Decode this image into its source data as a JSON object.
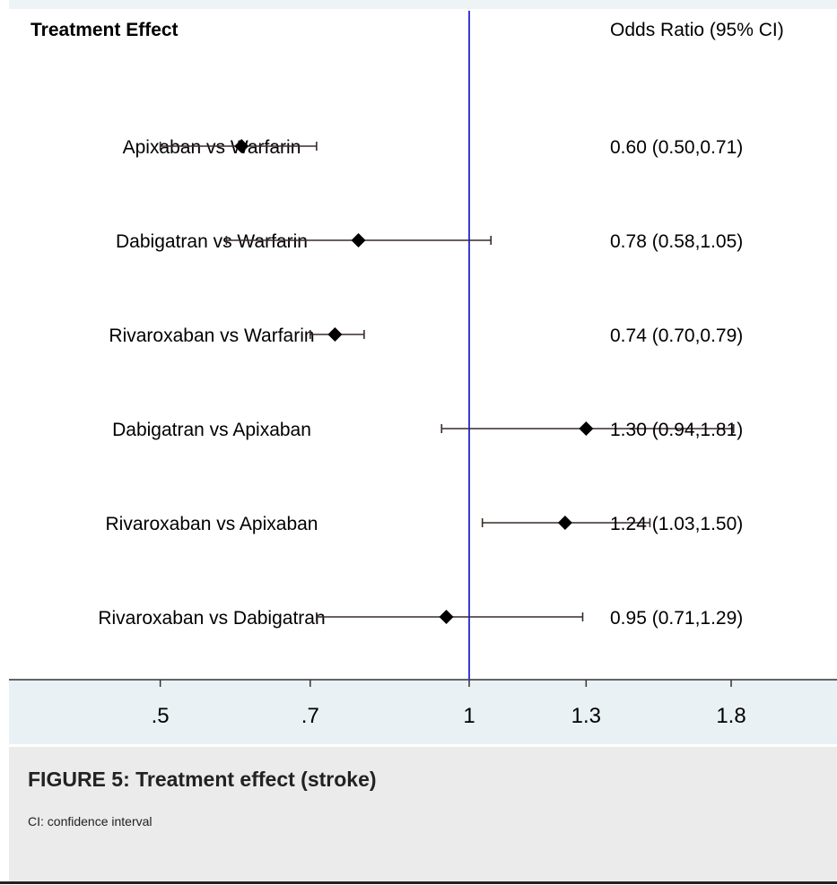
{
  "chart_data": {
    "type": "forest",
    "header_left": "Treatment Effect",
    "header_right": "Odds Ratio (95% CI)",
    "x_scale": "log",
    "xlim": [
      0.36,
      2.3
    ],
    "reference_line": 1,
    "reference_color": "#3b3bd6",
    "marker_color": "#000000",
    "axis_band_color": "#eaf1f4",
    "ticks": [
      {
        "value": 0.5,
        "label": ".5"
      },
      {
        "value": 0.7,
        "label": ".7"
      },
      {
        "value": 1,
        "label": "1"
      },
      {
        "value": 1.3,
        "label": "1.3"
      },
      {
        "value": 1.8,
        "label": "1.8"
      }
    ],
    "rows": [
      {
        "label": "Apixaban vs Warfarin",
        "or": 0.6,
        "lo": 0.5,
        "hi": 0.71,
        "text": "0.60 (0.50,0.71)"
      },
      {
        "label": "Dabigatran vs Warfarin",
        "or": 0.78,
        "lo": 0.58,
        "hi": 1.05,
        "text": "0.78 (0.58,1.05)"
      },
      {
        "label": "Rivaroxaban vs Warfarin",
        "or": 0.74,
        "lo": 0.7,
        "hi": 0.79,
        "text": "0.74 (0.70,0.79)"
      },
      {
        "label": "Dabigatran vs Apixaban",
        "or": 1.3,
        "lo": 0.94,
        "hi": 1.81,
        "text": "1.30 (0.94,1.81)"
      },
      {
        "label": "Rivaroxaban vs Apixaban",
        "or": 1.24,
        "lo": 1.03,
        "hi": 1.5,
        "text": "1.24 (1.03,1.50)"
      },
      {
        "label": "Rivaroxaban vs Dabigatran",
        "or": 0.95,
        "lo": 0.71,
        "hi": 1.29,
        "text": "0.95 (0.71,1.29)"
      }
    ]
  },
  "caption": {
    "title": "FIGURE 5: Treatment effect (stroke)",
    "note": "CI: confidence interval"
  }
}
